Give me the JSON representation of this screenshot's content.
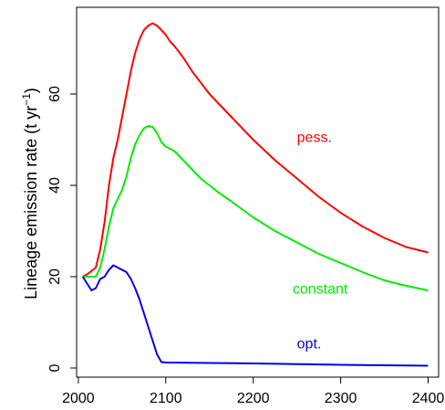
{
  "chart_data": {
    "type": "line",
    "title": "",
    "xlabel": "",
    "ylabel": {
      "main": "Lineage emission rate (t yr",
      "sup": "−1",
      "close": ")"
    },
    "xlim": [
      1998,
      2412
    ],
    "ylim": [
      -2,
      79
    ],
    "x_ticks": [
      2000,
      2100,
      2200,
      2300,
      2400
    ],
    "y_ticks": [
      0,
      20,
      40,
      60
    ],
    "grid": false,
    "legend": "none",
    "series": [
      {
        "name": "pess.",
        "color": "#ff0000",
        "label_pos": [
          2250,
          49.5
        ],
        "points": [
          [
            2005,
            20
          ],
          [
            2010,
            20.5
          ],
          [
            2020,
            22
          ],
          [
            2025,
            26
          ],
          [
            2030,
            32
          ],
          [
            2035,
            40
          ],
          [
            2040,
            46
          ],
          [
            2045,
            50
          ],
          [
            2050,
            55
          ],
          [
            2055,
            60
          ],
          [
            2060,
            65
          ],
          [
            2065,
            69
          ],
          [
            2070,
            72
          ],
          [
            2075,
            74
          ],
          [
            2080,
            75
          ],
          [
            2085,
            75.5
          ],
          [
            2090,
            75
          ],
          [
            2095,
            74
          ],
          [
            2100,
            73
          ],
          [
            2105,
            71.5
          ],
          [
            2110,
            70.5
          ],
          [
            2120,
            68
          ],
          [
            2130,
            65
          ],
          [
            2140,
            62.5
          ],
          [
            2150,
            60
          ],
          [
            2160,
            58
          ],
          [
            2175,
            55
          ],
          [
            2200,
            50
          ],
          [
            2225,
            45.5
          ],
          [
            2250,
            41.5
          ],
          [
            2275,
            37.5
          ],
          [
            2300,
            34
          ],
          [
            2325,
            31
          ],
          [
            2350,
            28.5
          ],
          [
            2375,
            26.5
          ],
          [
            2400,
            25.3
          ]
        ]
      },
      {
        "name": "constant",
        "color": "#00ee00",
        "label_pos": [
          2245,
          16.3
        ],
        "points": [
          [
            2005,
            20
          ],
          [
            2010,
            20
          ],
          [
            2020,
            20
          ],
          [
            2025,
            22
          ],
          [
            2030,
            26
          ],
          [
            2035,
            31
          ],
          [
            2040,
            35
          ],
          [
            2045,
            37
          ],
          [
            2050,
            39
          ],
          [
            2055,
            42
          ],
          [
            2060,
            46
          ],
          [
            2065,
            49
          ],
          [
            2070,
            51
          ],
          [
            2075,
            52.5
          ],
          [
            2080,
            53
          ],
          [
            2085,
            52.8
          ],
          [
            2090,
            51.5
          ],
          [
            2095,
            49.5
          ],
          [
            2100,
            48.5
          ],
          [
            2105,
            48
          ],
          [
            2110,
            47.5
          ],
          [
            2120,
            45.5
          ],
          [
            2130,
            43.5
          ],
          [
            2140,
            41.5
          ],
          [
            2150,
            40
          ],
          [
            2160,
            38.5
          ],
          [
            2175,
            36.5
          ],
          [
            2200,
            33
          ],
          [
            2225,
            30
          ],
          [
            2250,
            27.5
          ],
          [
            2275,
            25
          ],
          [
            2300,
            23
          ],
          [
            2325,
            21
          ],
          [
            2350,
            19.2
          ],
          [
            2375,
            18
          ],
          [
            2400,
            17
          ]
        ]
      },
      {
        "name": "opt.",
        "color": "#0000ee",
        "label_pos": [
          2250,
          4.3
        ],
        "points": [
          [
            2005,
            20
          ],
          [
            2010,
            18.5
          ],
          [
            2015,
            17
          ],
          [
            2020,
            17.5
          ],
          [
            2025,
            19.5
          ],
          [
            2030,
            20
          ],
          [
            2035,
            21.5
          ],
          [
            2040,
            22.5
          ],
          [
            2045,
            22
          ],
          [
            2050,
            21.5
          ],
          [
            2055,
            21
          ],
          [
            2060,
            19.5
          ],
          [
            2065,
            17.5
          ],
          [
            2070,
            15
          ],
          [
            2075,
            12
          ],
          [
            2080,
            9
          ],
          [
            2085,
            6
          ],
          [
            2090,
            3
          ],
          [
            2095,
            1.3
          ],
          [
            2100,
            1.2
          ],
          [
            2200,
            1.0
          ],
          [
            2300,
            0.7
          ],
          [
            2400,
            0.5
          ]
        ]
      }
    ]
  }
}
